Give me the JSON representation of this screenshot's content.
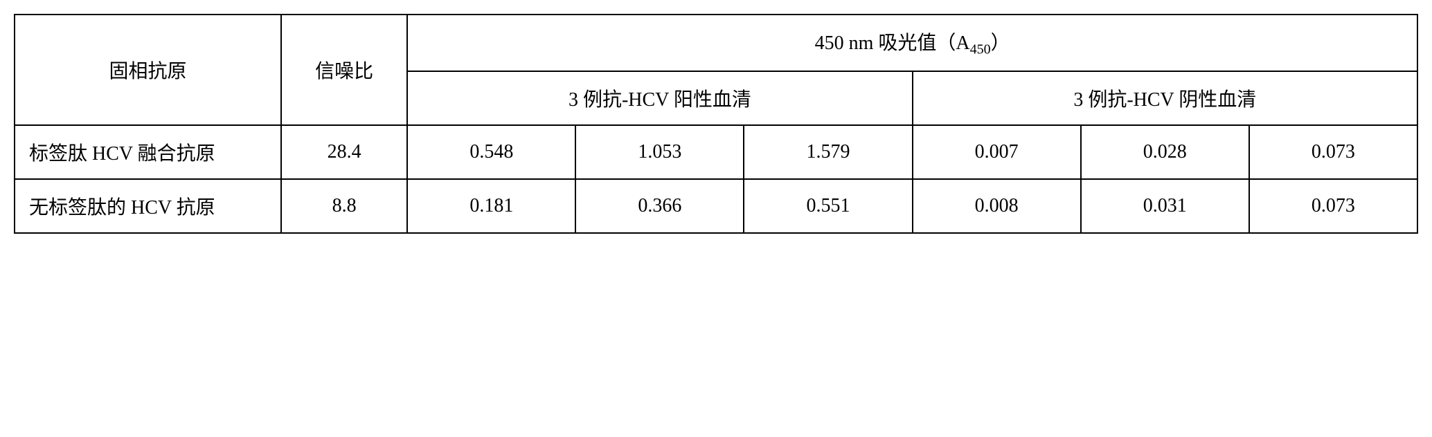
{
  "headers": {
    "antigen": "固相抗原",
    "snr": "信噪比",
    "a450_prefix": "450 nm 吸光值（A",
    "a450_sub": "450",
    "a450_suffix": "）",
    "positive": "3 例抗-HCV 阳性血清",
    "negative": "3 例抗-HCV 阴性血清"
  },
  "rows": [
    {
      "antigen": "标签肽 HCV 融合抗原",
      "snr": "28.4",
      "pos": [
        "0.548",
        "1.053",
        "1.579"
      ],
      "neg": [
        "0.007",
        "0.028",
        "0.073"
      ]
    },
    {
      "antigen": "无标签肽的 HCV 抗原",
      "snr": "8.8",
      "pos": [
        "0.181",
        "0.366",
        "0.551"
      ],
      "neg": [
        "0.008",
        "0.031",
        "0.073"
      ]
    }
  ]
}
